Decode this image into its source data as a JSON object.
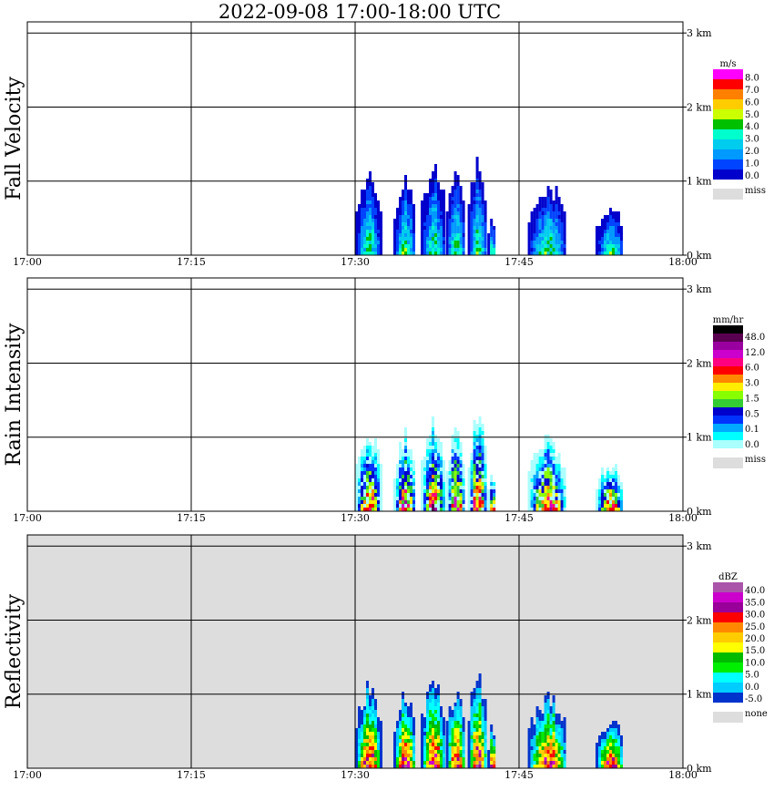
{
  "title": "2022-09-08  17:00-18:00 UTC",
  "chart_data": [
    {
      "type": "heatmap",
      "ylabel": "Fall Velocity",
      "colorbar_unit": "m/s",
      "colorbar": {
        "colors": [
          "#ff00ff",
          "#ff0000",
          "#ff8000",
          "#ffcc00",
          "#ccff00",
          "#00c000",
          "#00ffcc",
          "#00ccee",
          "#0099ff",
          "#0044ff",
          "#0000cc"
        ],
        "labels": [
          "8.0",
          "7.0",
          "6.0",
          "5.0",
          "4.0",
          "3.0",
          "2.0",
          "1.0",
          "0.0"
        ],
        "missing_label": "miss",
        "missing_color": "#dddddd"
      },
      "background": "#ffffff",
      "x_ticks": [
        "17:00",
        "17:15",
        "17:30",
        "17:45",
        "18:00"
      ],
      "y_ticks": [
        "0 km",
        "1 km",
        "2 km",
        "3 km"
      ],
      "xlim": [
        0,
        60
      ],
      "ylim": [
        0,
        3
      ],
      "grid": true
    },
    {
      "type": "heatmap",
      "ylabel": "Rain Intensity",
      "colorbar_unit": "mm/hr",
      "colorbar": {
        "colors": [
          "#000000",
          "#5a0050",
          "#9a00a0",
          "#cc00cc",
          "#ff0080",
          "#ff0000",
          "#ff8800",
          "#ffee00",
          "#88ff00",
          "#33cc33",
          "#0000cc",
          "#0033ff",
          "#00aaff",
          "#00ffff",
          "#aaffff"
        ],
        "labels": [
          "48.0",
          "12.0",
          "6.0",
          "3.0",
          "1.5",
          "0.5",
          "0.1",
          "0.0"
        ],
        "missing_label": "miss",
        "missing_color": "#dddddd"
      },
      "background": "#ffffff",
      "x_ticks": [
        "17:00",
        "17:15",
        "17:30",
        "17:45",
        "18:00"
      ],
      "y_ticks": [
        "0 km",
        "1 km",
        "2 km",
        "3 km"
      ],
      "xlim": [
        0,
        60
      ],
      "ylim": [
        0,
        3
      ],
      "grid": true
    },
    {
      "type": "heatmap",
      "ylabel": "Reflectivity",
      "colorbar_unit": "dBZ",
      "colorbar": {
        "colors": [
          "#aa55aa",
          "#cc00cc",
          "#990099",
          "#ff0000",
          "#ff8800",
          "#ffcc00",
          "#ffff00",
          "#00bb00",
          "#00ee00",
          "#00ffff",
          "#00ccff",
          "#0033cc"
        ],
        "labels": [
          "40.0",
          "35.0",
          "30.0",
          "25.0",
          "20.0",
          "15.0",
          "10.0",
          "5.0",
          "0.0",
          "-5.0"
        ],
        "missing_label": "none",
        "missing_color": "#dddddd"
      },
      "background": "#dddddd",
      "x_ticks": [
        "17:00",
        "17:15",
        "17:30",
        "17:45",
        "18:00"
      ],
      "y_ticks": [
        "0 km",
        "1 km",
        "2 km",
        "3 km"
      ],
      "xlim": [
        0,
        60
      ],
      "ylim": [
        0,
        3
      ],
      "grid": true
    }
  ]
}
